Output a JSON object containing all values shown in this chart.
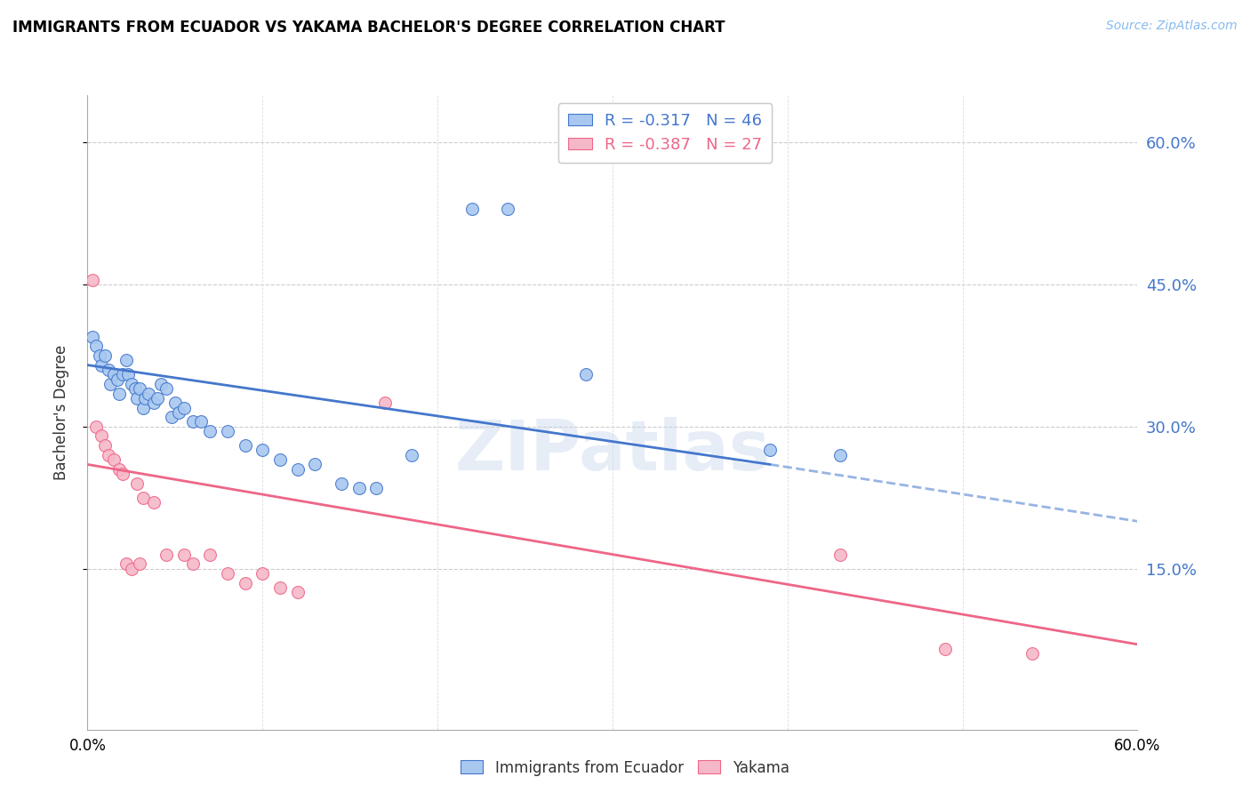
{
  "title": "IMMIGRANTS FROM ECUADOR VS YAKAMA BACHELOR'S DEGREE CORRELATION CHART",
  "source": "Source: ZipAtlas.com",
  "ylabel": "Bachelor's Degree",
  "watermark": "ZIPatlas",
  "legend_entry1_label": "R = -0.317   N = 46",
  "legend_entry2_label": "R = -0.387   N = 27",
  "legend_label1": "Immigrants from Ecuador",
  "legend_label2": "Yakama",
  "blue_color": "#A8C8F0",
  "pink_color": "#F5B8C8",
  "blue_line_color": "#4477CC",
  "pink_line_color": "#EE6688",
  "xmin": 0.0,
  "xmax": 0.6,
  "ymin": -0.02,
  "ymax": 0.65,
  "yticks": [
    0.15,
    0.3,
    0.45,
    0.6
  ],
  "ytick_labels": [
    "15.0%",
    "30.0%",
    "45.0%",
    "60.0%"
  ],
  "blue_scatter": [
    [
      0.003,
      0.395
    ],
    [
      0.005,
      0.385
    ],
    [
      0.007,
      0.375
    ],
    [
      0.008,
      0.365
    ],
    [
      0.01,
      0.375
    ],
    [
      0.012,
      0.36
    ],
    [
      0.013,
      0.345
    ],
    [
      0.015,
      0.355
    ],
    [
      0.017,
      0.35
    ],
    [
      0.018,
      0.335
    ],
    [
      0.02,
      0.355
    ],
    [
      0.022,
      0.37
    ],
    [
      0.023,
      0.355
    ],
    [
      0.025,
      0.345
    ],
    [
      0.027,
      0.34
    ],
    [
      0.028,
      0.33
    ],
    [
      0.03,
      0.34
    ],
    [
      0.032,
      0.32
    ],
    [
      0.033,
      0.33
    ],
    [
      0.035,
      0.335
    ],
    [
      0.038,
      0.325
    ],
    [
      0.04,
      0.33
    ],
    [
      0.042,
      0.345
    ],
    [
      0.045,
      0.34
    ],
    [
      0.048,
      0.31
    ],
    [
      0.05,
      0.325
    ],
    [
      0.052,
      0.315
    ],
    [
      0.055,
      0.32
    ],
    [
      0.06,
      0.305
    ],
    [
      0.065,
      0.305
    ],
    [
      0.07,
      0.295
    ],
    [
      0.08,
      0.295
    ],
    [
      0.09,
      0.28
    ],
    [
      0.1,
      0.275
    ],
    [
      0.11,
      0.265
    ],
    [
      0.12,
      0.255
    ],
    [
      0.13,
      0.26
    ],
    [
      0.145,
      0.24
    ],
    [
      0.155,
      0.235
    ],
    [
      0.165,
      0.235
    ],
    [
      0.185,
      0.27
    ],
    [
      0.22,
      0.53
    ],
    [
      0.24,
      0.53
    ],
    [
      0.285,
      0.355
    ],
    [
      0.39,
      0.275
    ],
    [
      0.43,
      0.27
    ]
  ],
  "pink_scatter": [
    [
      0.003,
      0.455
    ],
    [
      0.005,
      0.3
    ],
    [
      0.008,
      0.29
    ],
    [
      0.01,
      0.28
    ],
    [
      0.012,
      0.27
    ],
    [
      0.015,
      0.265
    ],
    [
      0.018,
      0.255
    ],
    [
      0.02,
      0.25
    ],
    [
      0.022,
      0.155
    ],
    [
      0.025,
      0.15
    ],
    [
      0.028,
      0.24
    ],
    [
      0.03,
      0.155
    ],
    [
      0.032,
      0.225
    ],
    [
      0.038,
      0.22
    ],
    [
      0.045,
      0.165
    ],
    [
      0.055,
      0.165
    ],
    [
      0.06,
      0.155
    ],
    [
      0.07,
      0.165
    ],
    [
      0.08,
      0.145
    ],
    [
      0.09,
      0.135
    ],
    [
      0.1,
      0.145
    ],
    [
      0.11,
      0.13
    ],
    [
      0.12,
      0.125
    ],
    [
      0.17,
      0.325
    ],
    [
      0.43,
      0.165
    ],
    [
      0.49,
      0.065
    ],
    [
      0.54,
      0.06
    ]
  ],
  "blue_trendline_solid": [
    [
      0.0,
      0.365
    ],
    [
      0.39,
      0.26
    ]
  ],
  "blue_trendline_dash": [
    [
      0.39,
      0.26
    ],
    [
      0.6,
      0.2
    ]
  ],
  "pink_trendline": [
    [
      0.0,
      0.26
    ],
    [
      0.6,
      0.07
    ]
  ]
}
